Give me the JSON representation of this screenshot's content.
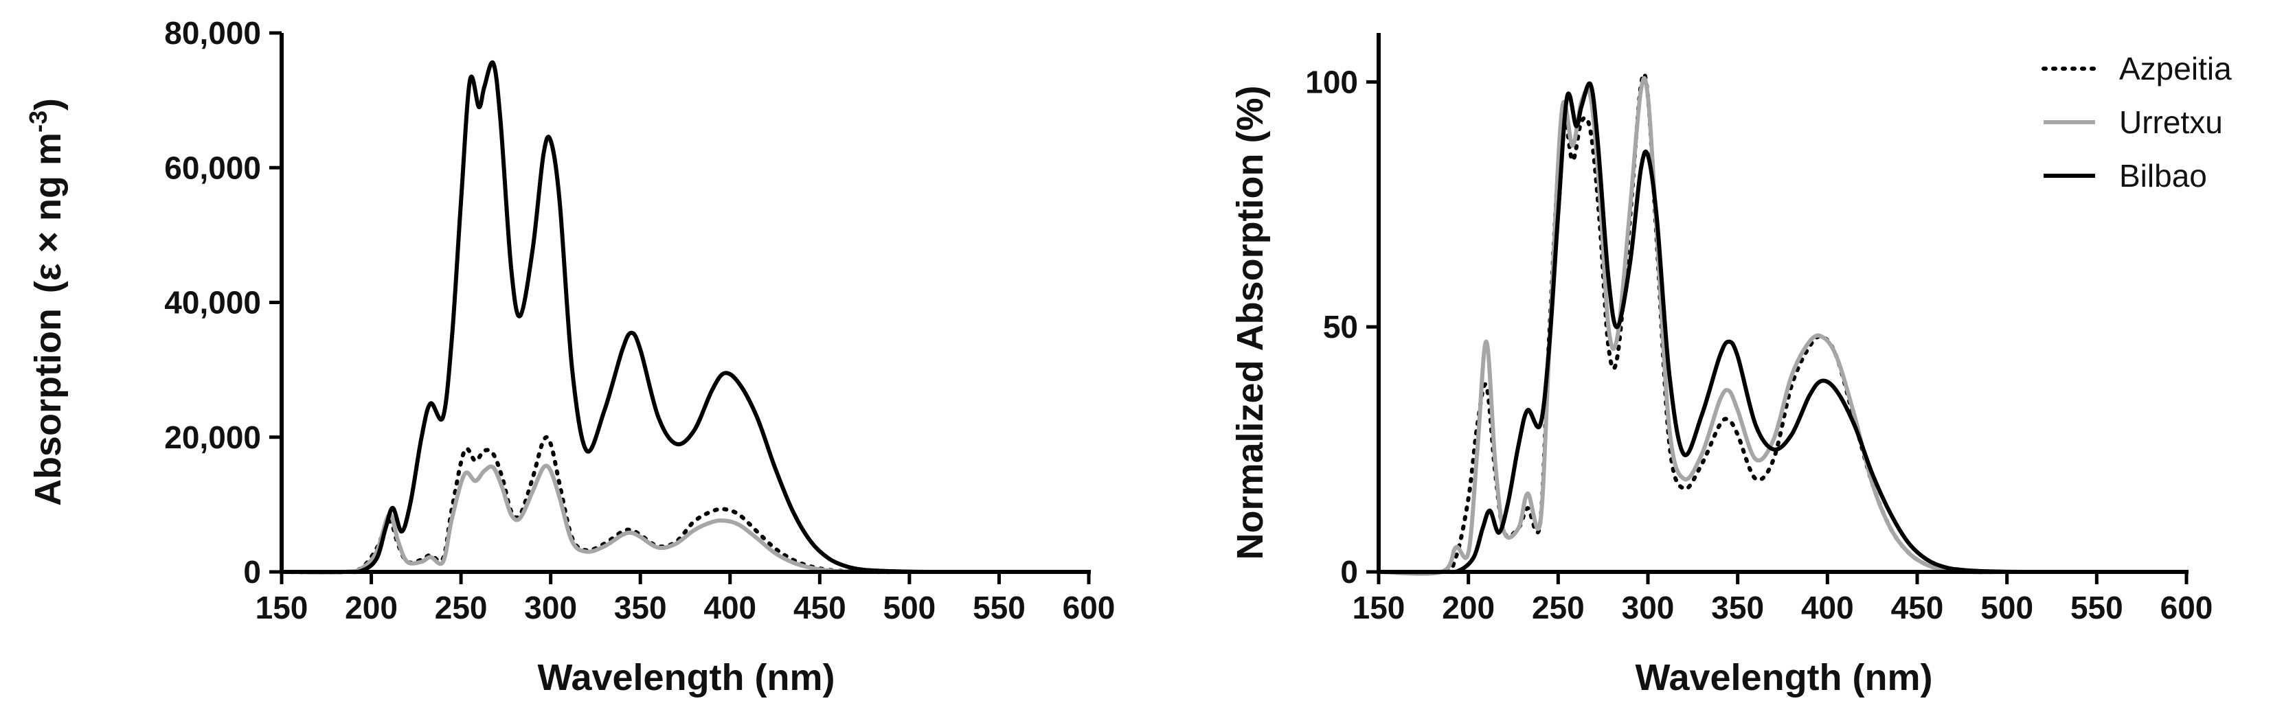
{
  "chart_data": [
    {
      "type": "line",
      "title": "",
      "xlabel": "Wavelength (nm)",
      "ylabel_main": "Absorption",
      "ylabel_units": "(ε × ng m",
      "ylabel_sup": "-3",
      "ylabel_close": ")",
      "xlim": [
        150,
        600
      ],
      "ylim": [
        0,
        80000
      ],
      "xticks": [
        150,
        200,
        250,
        300,
        350,
        400,
        450,
        500,
        550,
        600
      ],
      "yticks": [
        0,
        20000,
        40000,
        60000,
        80000
      ],
      "ytick_labels": [
        "0",
        "20,000",
        "40,000",
        "60,000",
        "80,000"
      ],
      "series": [
        {
          "name": "Azpeitia",
          "style": "dotted",
          "color": "#000000",
          "x": [
            150,
            185,
            195,
            203,
            210,
            215,
            220,
            228,
            233,
            240,
            245,
            252,
            258,
            263,
            268,
            273,
            278,
            283,
            290,
            296,
            300,
            305,
            312,
            320,
            330,
            340,
            345,
            350,
            360,
            370,
            380,
            390,
            397,
            405,
            415,
            425,
            435,
            445,
            455,
            465,
            480,
            500,
            550,
            600
          ],
          "y": [
            0,
            0,
            700,
            3500,
            7500,
            4000,
            1500,
            1800,
            2500,
            2000,
            9500,
            18000,
            16500,
            18000,
            17500,
            14000,
            9000,
            8500,
            14000,
            19500,
            19000,
            13000,
            5000,
            3200,
            4200,
            6000,
            6200,
            5500,
            3800,
            4500,
            7500,
            9000,
            9300,
            8500,
            6000,
            3500,
            1800,
            800,
            300,
            100,
            0,
            0,
            0,
            0
          ]
        },
        {
          "name": "Urretxu",
          "style": "solid",
          "color": "#a6a6a6",
          "x": [
            150,
            185,
            195,
            203,
            210,
            215,
            220,
            228,
            233,
            240,
            245,
            252,
            258,
            263,
            268,
            273,
            278,
            283,
            290,
            296,
            300,
            305,
            312,
            320,
            330,
            340,
            345,
            350,
            360,
            370,
            380,
            390,
            397,
            405,
            415,
            425,
            435,
            445,
            455,
            465,
            480,
            500,
            550,
            600
          ],
          "y": [
            0,
            0,
            600,
            3000,
            8500,
            4500,
            1500,
            1500,
            2200,
            1500,
            8000,
            14500,
            13500,
            15000,
            15500,
            12500,
            8500,
            8000,
            12000,
            15500,
            15000,
            11000,
            4500,
            3000,
            3800,
            5500,
            5800,
            5200,
            3600,
            4200,
            6200,
            7400,
            7600,
            7000,
            5000,
            2800,
            1400,
            600,
            200,
            50,
            0,
            0,
            0,
            0
          ]
        },
        {
          "name": "Bilbao",
          "style": "solid",
          "color": "#000000",
          "x": [
            150,
            185,
            195,
            203,
            208,
            212,
            217,
            222,
            228,
            233,
            240,
            245,
            250,
            255,
            260,
            263,
            268,
            272,
            278,
            283,
            290,
            296,
            300,
            305,
            312,
            320,
            330,
            340,
            345,
            350,
            360,
            370,
            380,
            390,
            397,
            405,
            415,
            425,
            435,
            445,
            455,
            465,
            475,
            490,
            510,
            550,
            600
          ],
          "y": [
            0,
            0,
            200,
            2000,
            6500,
            9500,
            6000,
            10500,
            20000,
            25000,
            23000,
            35000,
            55000,
            73000,
            69000,
            72000,
            75500,
            67000,
            45000,
            38000,
            48000,
            62000,
            64000,
            55000,
            30000,
            18000,
            24000,
            33000,
            35500,
            33000,
            23000,
            19000,
            21000,
            27000,
            29500,
            28000,
            23000,
            15500,
            9000,
            4500,
            2000,
            800,
            300,
            100,
            0,
            0,
            0
          ]
        }
      ]
    },
    {
      "type": "line",
      "title": "",
      "xlabel": "Wavelength (nm)",
      "ylabel": "Normalized Absorption (%)",
      "xlim": [
        150,
        600
      ],
      "ylim": [
        0,
        110
      ],
      "xticks": [
        150,
        200,
        250,
        300,
        350,
        400,
        450,
        500,
        550,
        600
      ],
      "yticks": [
        0,
        50,
        100
      ],
      "ytick_labels": [
        "0",
        "50",
        "100"
      ],
      "legend_position": "top-right",
      "series": [
        {
          "name": "Azpeitia",
          "style": "dotted",
          "color": "#000000",
          "x": [
            150,
            185,
            193,
            200,
            205,
            210,
            215,
            220,
            228,
            233,
            240,
            245,
            252,
            258,
            263,
            268,
            273,
            278,
            283,
            290,
            296,
            300,
            305,
            312,
            320,
            330,
            340,
            345,
            350,
            360,
            370,
            380,
            390,
            397,
            405,
            415,
            425,
            435,
            445,
            455,
            465,
            480,
            500,
            550,
            600
          ],
          "y": [
            0,
            0,
            3,
            15,
            30,
            38,
            20,
            8,
            9,
            13,
            10,
            48,
            92,
            84,
            92,
            90,
            72,
            46,
            44,
            72,
            99,
            97,
            67,
            26,
            17,
            22,
            30,
            31,
            28,
            19,
            23,
            38,
            46,
            48,
            44,
            31,
            18,
            9,
            4,
            1.5,
            0.5,
            0,
            0,
            0,
            0
          ]
        },
        {
          "name": "Urretxu",
          "style": "solid",
          "color": "#a6a6a6",
          "x": [
            150,
            185,
            193,
            200,
            205,
            210,
            215,
            220,
            228,
            233,
            240,
            245,
            252,
            258,
            263,
            268,
            273,
            278,
            283,
            290,
            296,
            300,
            305,
            312,
            320,
            330,
            340,
            345,
            350,
            360,
            370,
            380,
            390,
            397,
            405,
            415,
            425,
            435,
            445,
            455,
            465,
            480,
            500,
            550,
            600
          ],
          "y": [
            0,
            0,
            5,
            4,
            25,
            47,
            22,
            8,
            9,
            16,
            10,
            45,
            94,
            87,
            96,
            97,
            78,
            50,
            48,
            74,
            98,
            97,
            69,
            29,
            19,
            24,
            35,
            37,
            33,
            23,
            27,
            40,
            47,
            48,
            44,
            32,
            18,
            9,
            4,
            1.5,
            0.5,
            0,
            0,
            0,
            0
          ]
        },
        {
          "name": "Bilbao",
          "style": "solid",
          "color": "#000000",
          "x": [
            150,
            185,
            195,
            203,
            208,
            212,
            217,
            222,
            228,
            233,
            240,
            245,
            250,
            255,
            260,
            263,
            268,
            272,
            278,
            283,
            290,
            296,
            300,
            305,
            312,
            320,
            330,
            340,
            345,
            350,
            360,
            370,
            380,
            390,
            397,
            405,
            415,
            425,
            435,
            445,
            455,
            465,
            475,
            490,
            510,
            550,
            600
          ],
          "y": [
            0,
            0,
            0.3,
            3,
            9,
            12.5,
            8,
            14,
            26,
            33,
            30,
            46,
            73,
            97,
            91,
            95,
            99.5,
            88,
            60,
            50,
            63,
            82,
            85,
            72,
            40,
            24,
            32,
            44,
            47,
            44,
            30,
            25,
            28,
            36,
            39,
            37,
            30,
            20,
            12,
            6,
            2.6,
            1,
            0.4,
            0.1,
            0,
            0,
            0
          ]
        }
      ]
    }
  ]
}
